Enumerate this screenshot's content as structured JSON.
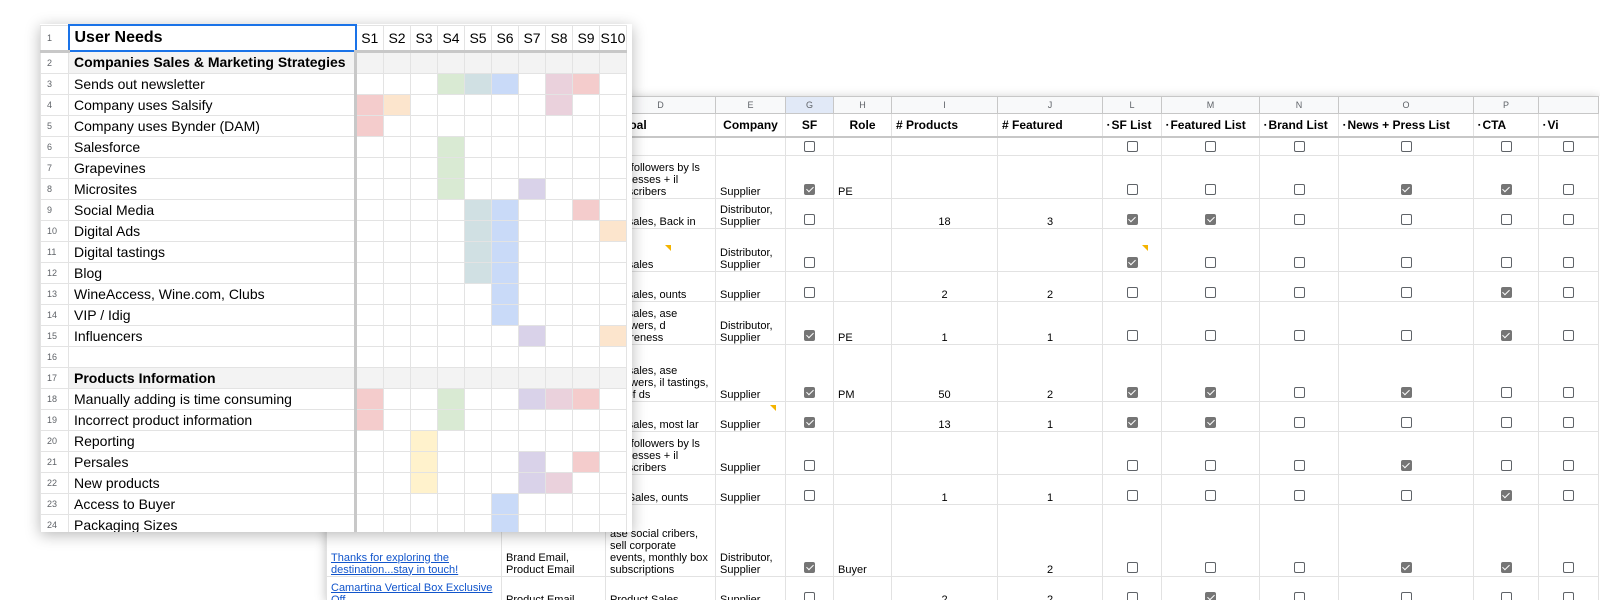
{
  "colors": {
    "red": "#f4cccc",
    "orange": "#fce5cd",
    "yellow": "#fff2cc",
    "green": "#d9ead3",
    "teal": "#d0e0e3",
    "blue": "#c9daf8",
    "purple": "#d9d2e9",
    "pink": "#ead1dc",
    "selection": "#1a73e8",
    "link": "#1155cc",
    "comment_marker": "#f4b400"
  },
  "front_sheet": {
    "header_title": "User Needs",
    "scenario_headers": [
      "S1",
      "S2",
      "S3",
      "S4",
      "S5",
      "S6",
      "S7",
      "S8",
      "S9",
      "S10"
    ],
    "rows": [
      {
        "num": "2",
        "label": "Companies Sales & Marketing Strategies",
        "category": true,
        "cells": [
          "",
          "",
          "",
          "",
          "",
          "",
          "",
          "",
          "",
          ""
        ]
      },
      {
        "num": "3",
        "label": "Sends out newsletter",
        "cells": [
          "",
          "",
          "",
          "green",
          "teal",
          "blue",
          "",
          "pink",
          "red",
          ""
        ]
      },
      {
        "num": "4",
        "label": "Company uses Salsify",
        "cells": [
          "red",
          "orange",
          "",
          "",
          "",
          "",
          "",
          "pink",
          "",
          ""
        ]
      },
      {
        "num": "5",
        "label": "Company uses Bynder (DAM)",
        "cells": [
          "red",
          "",
          "",
          "",
          "",
          "",
          "",
          "",
          "",
          ""
        ]
      },
      {
        "num": "6",
        "label": "Salesforce",
        "cells": [
          "",
          "",
          "",
          "green",
          "",
          "",
          "",
          "",
          "",
          ""
        ]
      },
      {
        "num": "7",
        "label": "Grapevines",
        "cells": [
          "",
          "",
          "",
          "green",
          "",
          "",
          "",
          "",
          "",
          ""
        ]
      },
      {
        "num": "8",
        "label": "Microsites",
        "cells": [
          "",
          "",
          "",
          "green",
          "",
          "",
          "purple",
          "",
          "",
          ""
        ]
      },
      {
        "num": "9",
        "label": "Social Media",
        "cells": [
          "",
          "",
          "",
          "",
          "teal",
          "blue",
          "",
          "",
          "red",
          ""
        ]
      },
      {
        "num": "10",
        "label": "Digital Ads",
        "cells": [
          "",
          "",
          "",
          "",
          "teal",
          "blue",
          "",
          "",
          "",
          "orange"
        ]
      },
      {
        "num": "11",
        "label": "Digital tastings",
        "cells": [
          "",
          "",
          "",
          "",
          "teal",
          "blue",
          "",
          "",
          "",
          ""
        ]
      },
      {
        "num": "12",
        "label": "Blog",
        "cells": [
          "",
          "",
          "",
          "",
          "teal",
          "blue",
          "",
          "",
          "",
          ""
        ]
      },
      {
        "num": "13",
        "label": "WineAccess, Wine.com, Clubs",
        "cells": [
          "",
          "",
          "",
          "",
          "",
          "blue",
          "",
          "",
          "",
          ""
        ]
      },
      {
        "num": "14",
        "label": "VIP / Idig",
        "cells": [
          "",
          "",
          "",
          "",
          "",
          "blue",
          "",
          "",
          "",
          ""
        ]
      },
      {
        "num": "15",
        "label": "Influencers",
        "cells": [
          "",
          "",
          "",
          "",
          "",
          "",
          "purple",
          "",
          "",
          "orange"
        ]
      },
      {
        "num": "16",
        "label": "",
        "cells": [
          "",
          "",
          "",
          "",
          "",
          "",
          "",
          "",
          "",
          ""
        ]
      },
      {
        "num": "17",
        "label": "Products Information",
        "category": true,
        "cells": [
          "",
          "",
          "",
          "",
          "",
          "",
          "",
          "",
          "",
          ""
        ]
      },
      {
        "num": "18",
        "label": "Manually adding is time consuming",
        "cells": [
          "red",
          "",
          "",
          "green",
          "",
          "",
          "purple",
          "pink",
          "red",
          ""
        ]
      },
      {
        "num": "19",
        "label": "Incorrect product information",
        "cells": [
          "red",
          "",
          "",
          "green",
          "",
          "",
          "",
          "",
          "",
          ""
        ]
      },
      {
        "num": "20",
        "label": "Reporting",
        "cells": [
          "",
          "",
          "yellow",
          "",
          "",
          "",
          "",
          "",
          "",
          ""
        ]
      },
      {
        "num": "21",
        "label": "Persales",
        "cells": [
          "",
          "",
          "yellow",
          "",
          "",
          "",
          "purple",
          "",
          "red",
          ""
        ]
      },
      {
        "num": "22",
        "label": "New products",
        "cells": [
          "",
          "",
          "yellow",
          "",
          "",
          "",
          "purple",
          "pink",
          "",
          ""
        ]
      },
      {
        "num": "23",
        "label": "Access to Buyer",
        "cells": [
          "",
          "",
          "",
          "",
          "",
          "blue",
          "",
          "",
          "",
          ""
        ]
      },
      {
        "num": "24",
        "label": "Packaging Sizes",
        "cells": [
          "",
          "",
          "",
          "",
          "",
          "blue",
          "",
          "",
          "",
          ""
        ]
      }
    ]
  },
  "back_sheet": {
    "column_letters": [
      "",
      "D",
      "E",
      "G",
      "H",
      "I",
      "J",
      "L",
      "M",
      "N",
      "O",
      "P",
      ""
    ],
    "column_headers": [
      "",
      "il Goal",
      "Company",
      "SF",
      "Role",
      "# Products",
      "# Featured",
      "SF List",
      "Featured List",
      "Brand List",
      "News + Press List",
      "CTA",
      "Vi"
    ],
    "rows": [
      {
        "email": "",
        "goal": "",
        "company": "",
        "sf": false,
        "role": "",
        "products": "",
        "featured": "",
        "checks": [
          false,
          false,
          false,
          false,
          false
        ],
        "extra": false
      },
      {
        "email": "",
        "goal": "ase followers by ls addresses + il subscribers",
        "company": "Supplier",
        "sf": true,
        "role": "PE",
        "products": "",
        "featured": "",
        "checks": [
          false,
          false,
          false,
          true,
          true
        ],
        "extra": false
      },
      {
        "email": "",
        "goal": "uct sales, Back in",
        "company": "Distributor, Supplier",
        "sf": false,
        "role": "",
        "products": "18",
        "featured": "3",
        "checks": [
          true,
          true,
          false,
          false,
          false
        ],
        "extra": false
      },
      {
        "email": "",
        "goal": "uct sales",
        "company": "Distributor, Supplier",
        "sf": false,
        "role": "",
        "products": "",
        "featured": "",
        "checks": [
          true,
          false,
          false,
          false,
          false
        ],
        "extra": false
      },
      {
        "email": "",
        "goal": "uct sales, ounts",
        "company": "Supplier",
        "sf": false,
        "role": "",
        "products": "2",
        "featured": "2",
        "checks": [
          false,
          false,
          false,
          false,
          true
        ],
        "extra": false
      },
      {
        "email": "",
        "goal": "uct sales, ase followers, d awareness",
        "company": "Distributor, Supplier",
        "sf": true,
        "role": "PE",
        "products": "1",
        "featured": "1",
        "checks": [
          false,
          false,
          false,
          false,
          true
        ],
        "extra": false
      },
      {
        "email": "",
        "goal": "uct sales, ase followers, il tastings, list of ds",
        "company": "Supplier",
        "sf": true,
        "role": "PM",
        "products": "50",
        "featured": "2",
        "checks": [
          true,
          true,
          false,
          true,
          false
        ],
        "extra": false
      },
      {
        "email": "",
        "goal": "uct sales, most lar",
        "company": "Supplier",
        "sf": true,
        "role": "",
        "products": "13",
        "featured": "1",
        "checks": [
          true,
          true,
          false,
          false,
          false
        ],
        "extra": false
      },
      {
        "email": "",
        "goal": "ase followers by ls addresses + il subscribers",
        "company": "Supplier",
        "sf": false,
        "role": "",
        "products": "",
        "featured": "",
        "checks": [
          false,
          false,
          false,
          true,
          false
        ],
        "extra": false
      },
      {
        "email": "",
        "goal": "uct Sales, ounts",
        "company": "Supplier",
        "sf": false,
        "role": "",
        "products": "1",
        "featured": "1",
        "checks": [
          false,
          false,
          false,
          false,
          true
        ],
        "extra": false
      },
      {
        "email": "Thanks for exploring the destination...stay in touch!",
        "type": "Brand Email, Product Email",
        "goal": "ase social cribers, sell corporate events, monthly box subscriptions",
        "company": "Distributor, Supplier",
        "sf": true,
        "role": "Buyer",
        "products": "",
        "featured": "2",
        "checks": [
          false,
          false,
          false,
          true,
          true
        ],
        "extra": false
      },
      {
        "email": "Camartina Vertical Box Exclusive Off...",
        "type": "Product Email",
        "goal": "Product Sales",
        "company": "Supplier",
        "sf": false,
        "role": "",
        "products": "2",
        "featured": "2",
        "checks": [
          false,
          true,
          false,
          false,
          false
        ],
        "extra": false
      }
    ]
  }
}
